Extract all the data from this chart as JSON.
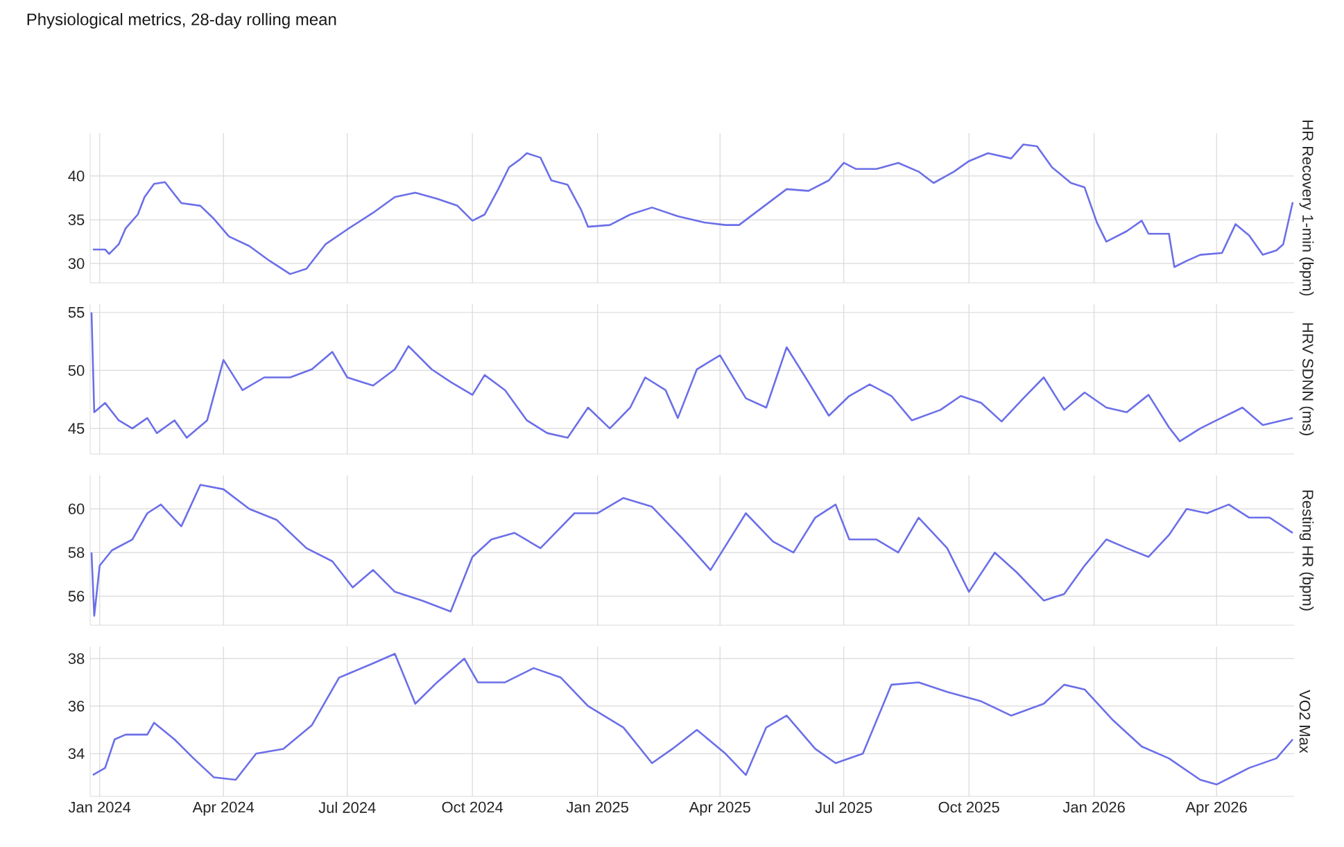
{
  "chart_data": [
    {
      "type": "line",
      "title": "Physiological metrics, 28-day rolling mean",
      "ylabel": "HR Recovery 1-min (bpm)",
      "color": "#6b6fe8",
      "grid": true,
      "tick_labels": "y",
      "xlim": [
        "2023-12-25",
        "2026-05-28"
      ],
      "xticks": [
        {
          "value": "2024-01-01",
          "label": null
        },
        {
          "value": "2024-04-01",
          "label": null
        },
        {
          "value": "2024-07-01",
          "label": null
        },
        {
          "value": "2024-10-01",
          "label": null
        },
        {
          "value": "2025-01-01",
          "label": null
        },
        {
          "value": "2025-04-01",
          "label": null
        },
        {
          "value": "2025-07-01",
          "label": null
        },
        {
          "value": "2025-10-01",
          "label": null
        },
        {
          "value": "2026-01-01",
          "label": null
        },
        {
          "value": "2026-04-01",
          "label": null
        }
      ],
      "ylim": [
        27.8,
        44.9
      ],
      "yticks": [
        30,
        35,
        40
      ],
      "x": [
        "2023-12-27",
        "2024-01-05",
        "2024-01-08",
        "2024-01-15",
        "2024-01-20",
        "2024-01-29",
        "2024-02-03",
        "2024-02-10",
        "2024-02-18",
        "2024-03-01",
        "2024-03-15",
        "2024-03-25",
        "2024-04-05",
        "2024-04-20",
        "2024-05-05",
        "2024-05-20",
        "2024-06-01",
        "2024-06-15",
        "2024-07-01",
        "2024-07-20",
        "2024-08-05",
        "2024-08-20",
        "2024-09-05",
        "2024-09-20",
        "2024-10-01",
        "2024-10-10",
        "2024-10-20",
        "2024-10-28",
        "2024-11-05",
        "2024-11-10",
        "2024-11-20",
        "2024-11-28",
        "2024-12-10",
        "2024-12-20",
        "2024-12-25",
        "2025-01-10",
        "2025-01-25",
        "2025-02-10",
        "2025-03-01",
        "2025-03-20",
        "2025-04-05",
        "2025-04-15",
        "2025-05-20",
        "2025-06-05",
        "2025-06-20",
        "2025-07-01",
        "2025-07-10",
        "2025-07-25",
        "2025-08-10",
        "2025-08-25",
        "2025-09-05",
        "2025-09-20",
        "2025-10-01",
        "2025-10-15",
        "2025-11-01",
        "2025-11-10",
        "2025-11-20",
        "2025-12-01",
        "2025-12-15",
        "2025-12-25",
        "2026-01-03",
        "2026-01-10",
        "2026-01-25",
        "2026-02-05",
        "2026-02-10",
        "2026-02-25",
        "2026-03-01",
        "2026-03-10",
        "2026-03-20",
        "2026-04-05",
        "2026-04-15",
        "2026-04-25",
        "2026-05-05",
        "2026-05-15",
        "2026-05-20",
        "2026-05-27"
      ],
      "values": [
        31.6,
        31.6,
        31.1,
        32.2,
        34.0,
        35.6,
        37.6,
        39.1,
        39.3,
        36.9,
        36.6,
        35.1,
        33.1,
        32.0,
        30.3,
        28.8,
        29.4,
        32.2,
        33.9,
        35.8,
        37.6,
        38.1,
        37.4,
        36.6,
        34.9,
        35.6,
        38.5,
        41.0,
        41.9,
        42.6,
        42.1,
        39.5,
        39.0,
        36.1,
        34.2,
        34.4,
        35.6,
        36.4,
        35.4,
        34.7,
        34.4,
        34.4,
        38.5,
        38.3,
        39.5,
        41.5,
        40.8,
        40.8,
        41.5,
        40.5,
        39.2,
        40.5,
        41.7,
        42.6,
        42.0,
        43.6,
        43.4,
        41.0,
        39.2,
        38.7,
        34.7,
        32.5,
        33.7,
        34.9,
        33.4,
        33.4,
        29.6,
        30.3,
        31.0,
        31.2,
        34.5,
        33.2,
        31.0,
        31.5,
        32.2,
        37.0
      ]
    },
    {
      "type": "line",
      "ylabel": "HRV SDNN (ms)",
      "color": "#6b6fe8",
      "grid": true,
      "tick_labels": "y",
      "xlim": [
        "2023-12-25",
        "2026-05-28"
      ],
      "xticks": [
        {
          "value": "2024-01-01",
          "label": null
        },
        {
          "value": "2024-04-01",
          "label": null
        },
        {
          "value": "2024-07-01",
          "label": null
        },
        {
          "value": "2024-10-01",
          "label": null
        },
        {
          "value": "2025-01-01",
          "label": null
        },
        {
          "value": "2025-04-01",
          "label": null
        },
        {
          "value": "2025-07-01",
          "label": null
        },
        {
          "value": "2025-10-01",
          "label": null
        },
        {
          "value": "2026-01-01",
          "label": null
        },
        {
          "value": "2026-04-01",
          "label": null
        }
      ],
      "ylim": [
        42.8,
        55.7
      ],
      "yticks": [
        45,
        50,
        55
      ],
      "x": [
        "2023-12-26",
        "2023-12-28",
        "2024-01-05",
        "2024-01-15",
        "2024-01-25",
        "2024-02-05",
        "2024-02-12",
        "2024-02-25",
        "2024-03-05",
        "2024-03-20",
        "2024-04-01",
        "2024-04-15",
        "2024-05-01",
        "2024-05-20",
        "2024-06-05",
        "2024-06-20",
        "2024-07-01",
        "2024-07-20",
        "2024-08-05",
        "2024-08-15",
        "2024-09-01",
        "2024-09-15",
        "2024-10-01",
        "2024-10-10",
        "2024-10-25",
        "2024-11-10",
        "2024-11-25",
        "2024-12-10",
        "2024-12-25",
        "2025-01-10",
        "2025-01-25",
        "2025-02-05",
        "2025-02-20",
        "2025-03-01",
        "2025-03-15",
        "2025-04-01",
        "2025-04-20",
        "2025-05-05",
        "2025-05-20",
        "2025-06-05",
        "2025-06-20",
        "2025-07-05",
        "2025-07-20",
        "2025-08-05",
        "2025-08-20",
        "2025-09-10",
        "2025-09-25",
        "2025-10-10",
        "2025-10-25",
        "2025-11-10",
        "2025-11-25",
        "2025-12-10",
        "2025-12-25",
        "2026-01-10",
        "2026-01-25",
        "2026-02-10",
        "2026-02-25",
        "2026-03-05",
        "2026-03-20",
        "2026-04-01",
        "2026-04-20",
        "2026-05-05",
        "2026-05-27"
      ],
      "values": [
        55.0,
        46.4,
        47.2,
        45.7,
        45.0,
        45.9,
        44.6,
        45.7,
        44.2,
        45.7,
        50.9,
        48.3,
        49.4,
        49.4,
        50.1,
        51.6,
        49.4,
        48.7,
        50.1,
        52.1,
        50.1,
        49.0,
        47.9,
        49.6,
        48.3,
        45.7,
        44.6,
        44.2,
        46.8,
        45.0,
        46.8,
        49.4,
        48.3,
        45.9,
        50.1,
        51.3,
        47.6,
        46.8,
        52.0,
        49.0,
        46.1,
        47.8,
        48.8,
        47.8,
        45.7,
        46.6,
        47.8,
        47.2,
        45.6,
        47.6,
        49.4,
        46.6,
        48.1,
        46.8,
        46.4,
        47.9,
        45.1,
        43.9,
        45.0,
        45.7,
        46.8,
        45.3,
        45.9
      ]
    },
    {
      "type": "line",
      "ylabel": "Resting HR (bpm)",
      "color": "#6b6fe8",
      "grid": true,
      "tick_labels": "y",
      "xlim": [
        "2023-12-25",
        "2026-05-28"
      ],
      "xticks": [
        {
          "value": "2024-01-01",
          "label": null
        },
        {
          "value": "2024-04-01",
          "label": null
        },
        {
          "value": "2024-07-01",
          "label": null
        },
        {
          "value": "2024-10-01",
          "label": null
        },
        {
          "value": "2025-01-01",
          "label": null
        },
        {
          "value": "2025-04-01",
          "label": null
        },
        {
          "value": "2025-07-01",
          "label": null
        },
        {
          "value": "2025-10-01",
          "label": null
        },
        {
          "value": "2026-01-01",
          "label": null
        },
        {
          "value": "2026-04-01",
          "label": null
        }
      ],
      "ylim": [
        54.67,
        61.53
      ],
      "yticks": [
        56,
        58,
        60
      ],
      "x": [
        "2023-12-26",
        "2023-12-28",
        "2024-01-01",
        "2024-01-10",
        "2024-01-25",
        "2024-02-05",
        "2024-02-15",
        "2024-03-01",
        "2024-03-15",
        "2024-04-01",
        "2024-04-20",
        "2024-05-10",
        "2024-06-01",
        "2024-06-20",
        "2024-07-05",
        "2024-07-20",
        "2024-08-05",
        "2024-08-25",
        "2024-09-15",
        "2024-10-01",
        "2024-10-15",
        "2024-11-01",
        "2024-11-20",
        "2024-12-15",
        "2025-01-01",
        "2025-01-20",
        "2025-02-10",
        "2025-03-05",
        "2025-03-25",
        "2025-04-20",
        "2025-05-10",
        "2025-05-25",
        "2025-06-10",
        "2025-06-25",
        "2025-07-05",
        "2025-07-25",
        "2025-08-10",
        "2025-08-25",
        "2025-09-15",
        "2025-10-01",
        "2025-10-20",
        "2025-11-05",
        "2025-11-25",
        "2025-12-10",
        "2025-12-25",
        "2026-01-10",
        "2026-01-25",
        "2026-02-10",
        "2026-02-25",
        "2026-03-10",
        "2026-03-25",
        "2026-04-10",
        "2026-04-25",
        "2026-05-10",
        "2026-05-27"
      ],
      "values": [
        58.0,
        55.1,
        57.4,
        58.1,
        58.6,
        59.8,
        60.2,
        59.2,
        61.1,
        60.9,
        60.0,
        59.5,
        58.2,
        57.6,
        56.4,
        57.2,
        56.2,
        55.8,
        55.3,
        57.8,
        58.6,
        58.9,
        58.2,
        59.8,
        59.8,
        60.5,
        60.1,
        58.6,
        57.2,
        59.8,
        58.5,
        58.0,
        59.6,
        60.2,
        58.6,
        58.6,
        58.0,
        59.6,
        58.2,
        56.2,
        58.0,
        57.1,
        55.8,
        56.1,
        57.4,
        58.6,
        58.2,
        57.8,
        58.8,
        60.0,
        59.8,
        60.2,
        59.6,
        59.6,
        58.9
      ]
    },
    {
      "type": "line",
      "ylabel": "VO2 Max",
      "color": "#6b6fe8",
      "grid": true,
      "xlim": [
        "2023-12-25",
        "2026-05-28"
      ],
      "xticks": [
        {
          "value": "2024-01-01",
          "label": "Jan 2024"
        },
        {
          "value": "2024-04-01",
          "label": "Apr 2024"
        },
        {
          "value": "2024-07-01",
          "label": "Jul 2024"
        },
        {
          "value": "2024-10-01",
          "label": "Oct 2024"
        },
        {
          "value": "2025-01-01",
          "label": "Jan 2025"
        },
        {
          "value": "2025-04-01",
          "label": "Apr 2025"
        },
        {
          "value": "2025-07-01",
          "label": "Jul 2025"
        },
        {
          "value": "2025-10-01",
          "label": "Oct 2025"
        },
        {
          "value": "2026-01-01",
          "label": "Jan 2026"
        },
        {
          "value": "2026-04-01",
          "label": "Apr 2026"
        }
      ],
      "ylim": [
        32.2,
        38.5
      ],
      "yticks": [
        34,
        36,
        38
      ],
      "x": [
        "2023-12-27",
        "2024-01-05",
        "2024-01-12",
        "2024-01-20",
        "2024-02-05",
        "2024-02-10",
        "2024-02-25",
        "2024-03-10",
        "2024-03-25",
        "2024-04-10",
        "2024-04-25",
        "2024-05-15",
        "2024-06-05",
        "2024-06-25",
        "2024-07-20",
        "2024-08-05",
        "2024-08-20",
        "2024-09-05",
        "2024-09-25",
        "2024-10-05",
        "2024-10-25",
        "2024-11-15",
        "2024-12-05",
        "2024-12-25",
        "2025-01-20",
        "2025-02-10",
        "2025-02-25",
        "2025-03-15",
        "2025-04-05",
        "2025-04-20",
        "2025-05-05",
        "2025-05-20",
        "2025-06-10",
        "2025-06-25",
        "2025-07-15",
        "2025-08-05",
        "2025-08-25",
        "2025-09-15",
        "2025-10-10",
        "2025-11-01",
        "2025-11-25",
        "2025-12-10",
        "2025-12-25",
        "2026-01-15",
        "2026-02-05",
        "2026-02-25",
        "2026-03-20",
        "2026-04-01",
        "2026-04-25",
        "2026-05-15",
        "2026-05-27"
      ],
      "values": [
        33.1,
        33.4,
        34.6,
        34.8,
        34.8,
        35.3,
        34.6,
        33.8,
        33.0,
        32.9,
        34.0,
        34.2,
        35.2,
        37.2,
        37.8,
        38.2,
        36.1,
        37.0,
        38.0,
        37.0,
        37.0,
        37.6,
        37.2,
        36.0,
        35.1,
        33.6,
        34.2,
        35.0,
        34.0,
        33.1,
        35.1,
        35.6,
        34.2,
        33.6,
        34.0,
        36.9,
        37.0,
        36.6,
        36.2,
        35.6,
        36.1,
        36.9,
        36.7,
        35.4,
        34.3,
        33.8,
        32.9,
        32.7,
        33.4,
        33.8,
        34.6
      ]
    }
  ]
}
